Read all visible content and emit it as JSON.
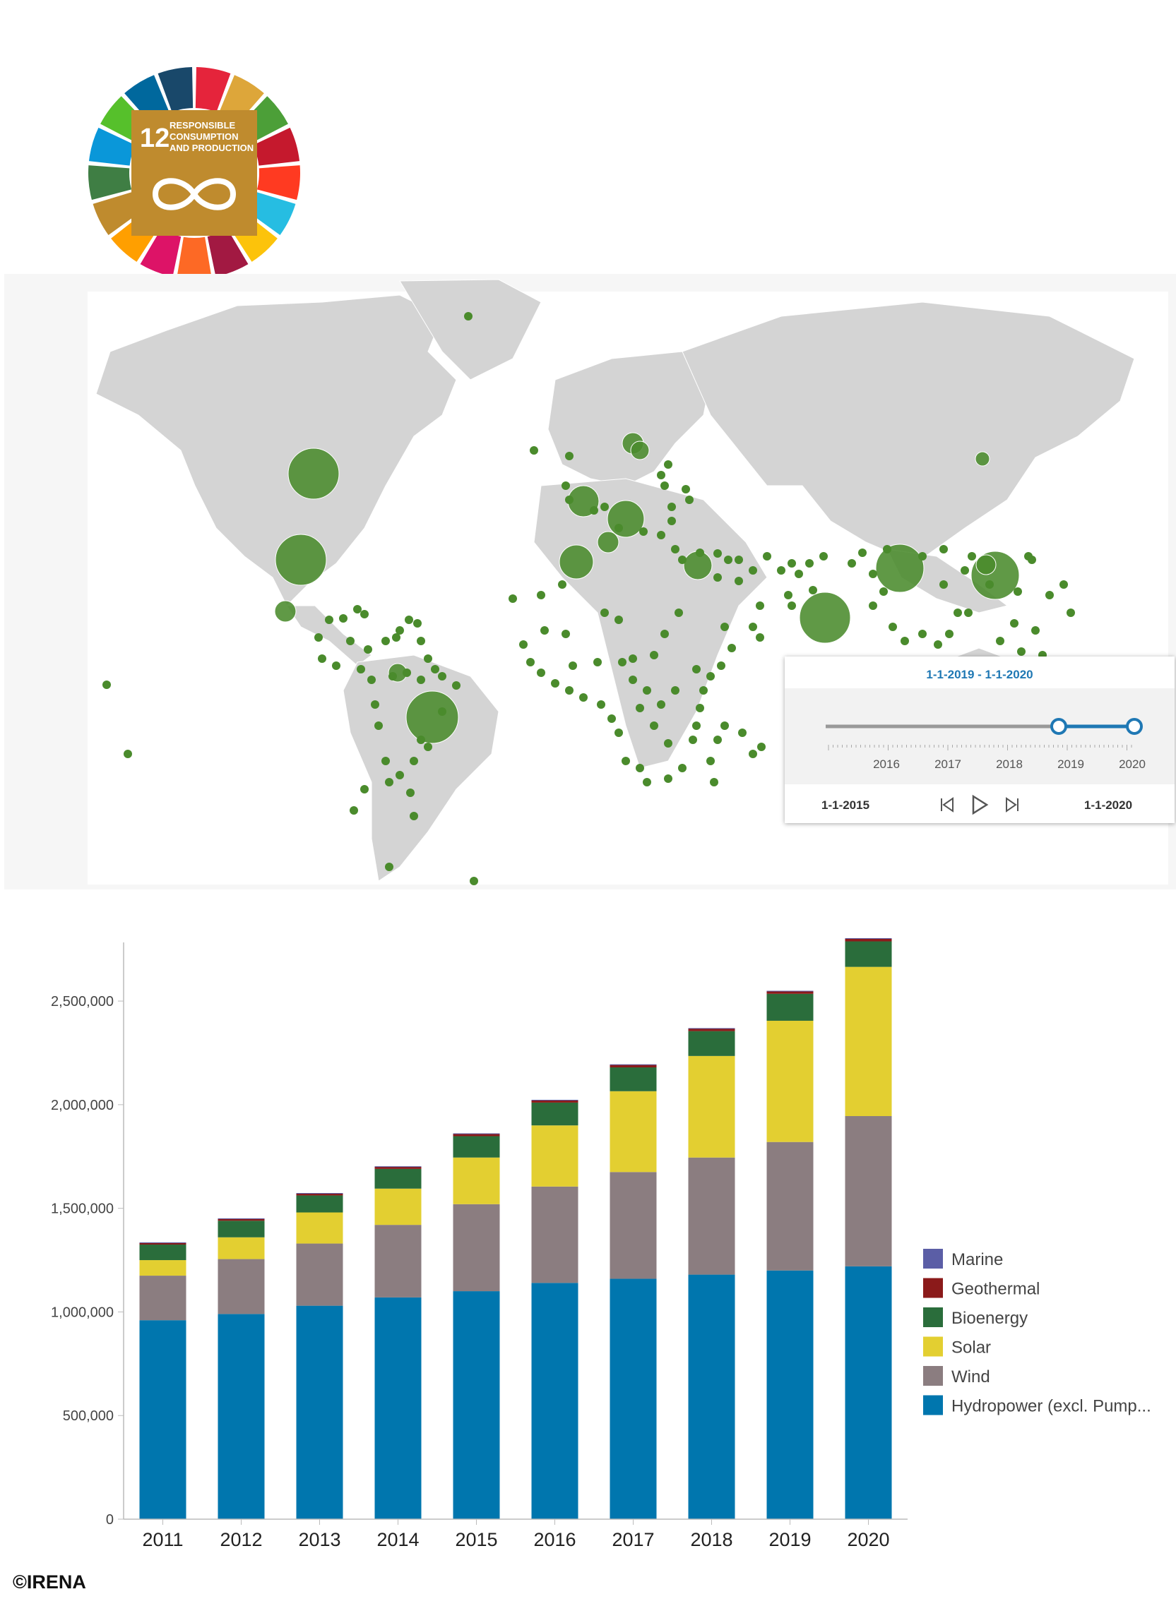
{
  "logo": {
    "number": "12",
    "line1": "RESPONSIBLE",
    "line2": "CONSUMPTION",
    "line3": "AND PRODUCTION",
    "icon": "infinity-icon",
    "wheel_colors": [
      "#e5243b",
      "#dda63a",
      "#4c9f38",
      "#c5192d",
      "#ff3a21",
      "#26bde2",
      "#fcc30b",
      "#a21942",
      "#fd6925",
      "#dd1367",
      "#ff9f00",
      "#bf8b2e",
      "#3f7e44",
      "#0a97d9",
      "#56c02b",
      "#00689d",
      "#19486a"
    ],
    "tile_color": "#bf8b2e"
  },
  "map": {
    "land_color": "#d4d4d4",
    "bubble_color": "#4a8b2c",
    "timeline": {
      "range_label": "1-1-2019  -  1-1-2020",
      "years": [
        "2016",
        "2017",
        "2018",
        "2019",
        "2020"
      ],
      "start_label": "1-1-2015",
      "end_label": "1-1-2020",
      "accent_color": "#1f78b4"
    }
  },
  "chart_data": {
    "type": "bar",
    "stacked": true,
    "categories": [
      "2011",
      "2012",
      "2013",
      "2014",
      "2015",
      "2016",
      "2017",
      "2018",
      "2019",
      "2020"
    ],
    "ylim": [
      0,
      2800000
    ],
    "yticks": [
      "0",
      "500,000",
      "1,000,000",
      "1,500,000",
      "2,000,000",
      "2,500,000"
    ],
    "series": [
      {
        "name": "Hydropower (excl. Pump...",
        "color": "#0076ae",
        "values": [
          960000,
          990000,
          1030000,
          1070000,
          1100000,
          1140000,
          1160000,
          1180000,
          1200000,
          1220000
        ]
      },
      {
        "name": "Wind",
        "color": "#8b7d80",
        "values": [
          215000,
          265000,
          300000,
          350000,
          420000,
          465000,
          515000,
          565000,
          620000,
          725000
        ]
      },
      {
        "name": "Solar",
        "color": "#e3cf31",
        "values": [
          75000,
          105000,
          150000,
          175000,
          225000,
          295000,
          390000,
          490000,
          585000,
          720000
        ]
      },
      {
        "name": "Bioenergy",
        "color": "#2a6d3b",
        "values": [
          75000,
          80000,
          82000,
          95000,
          103000,
          110000,
          115000,
          120000,
          130000,
          123000
        ]
      },
      {
        "name": "Geothermal",
        "color": "#8b1a1a",
        "values": [
          10000,
          11000,
          11000,
          12000,
          13000,
          13000,
          14000,
          14000,
          14000,
          15000
        ]
      },
      {
        "name": "Marine",
        "color": "#5b5ea6",
        "values": [
          500,
          500,
          500,
          500,
          500,
          500,
          500,
          500,
          500,
          500
        ]
      }
    ],
    "legend_position": "right",
    "title": "",
    "xlabel": "",
    "ylabel": ""
  },
  "credit": "©IRENA"
}
